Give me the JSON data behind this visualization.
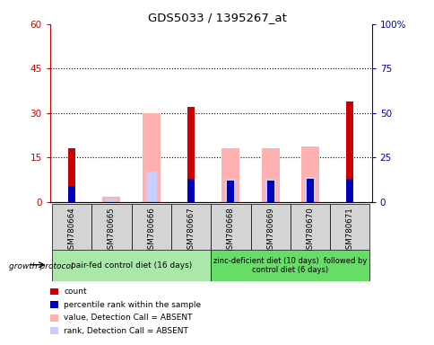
{
  "title": "GDS5033 / 1395267_at",
  "samples": [
    "GSM780664",
    "GSM780665",
    "GSM780666",
    "GSM780667",
    "GSM780668",
    "GSM780669",
    "GSM780670",
    "GSM780671"
  ],
  "count": [
    18,
    0,
    0,
    32,
    0,
    0,
    0,
    34
  ],
  "percentile_rank": [
    9,
    0,
    0,
    13,
    12,
    12,
    13,
    13
  ],
  "value_absent": [
    0,
    3,
    50,
    0,
    30,
    30,
    31,
    0
  ],
  "rank_absent": [
    0,
    2,
    17,
    0,
    13,
    13,
    14,
    0
  ],
  "ylim_left": [
    0,
    60
  ],
  "ylim_right": [
    0,
    100
  ],
  "yticks_left": [
    0,
    15,
    30,
    45,
    60
  ],
  "yticks_right": [
    0,
    25,
    50,
    75,
    100
  ],
  "group1_label": "pair-fed control diet (16 days)",
  "group2_label": "zinc-deficient diet (10 days)  followed by\ncontrol diet (6 days)",
  "group1_color": "#aae8aa",
  "group2_color": "#66dd66",
  "bar_bg_color": "#d4d4d4",
  "count_color": "#cc0000",
  "percentile_color": "#0000bb",
  "value_absent_color": "#ffb0b0",
  "rank_absent_color": "#c8ccff",
  "dotted_line_color": "#000000",
  "left_axis_color": "#cc0000",
  "right_axis_color": "#0000bb"
}
